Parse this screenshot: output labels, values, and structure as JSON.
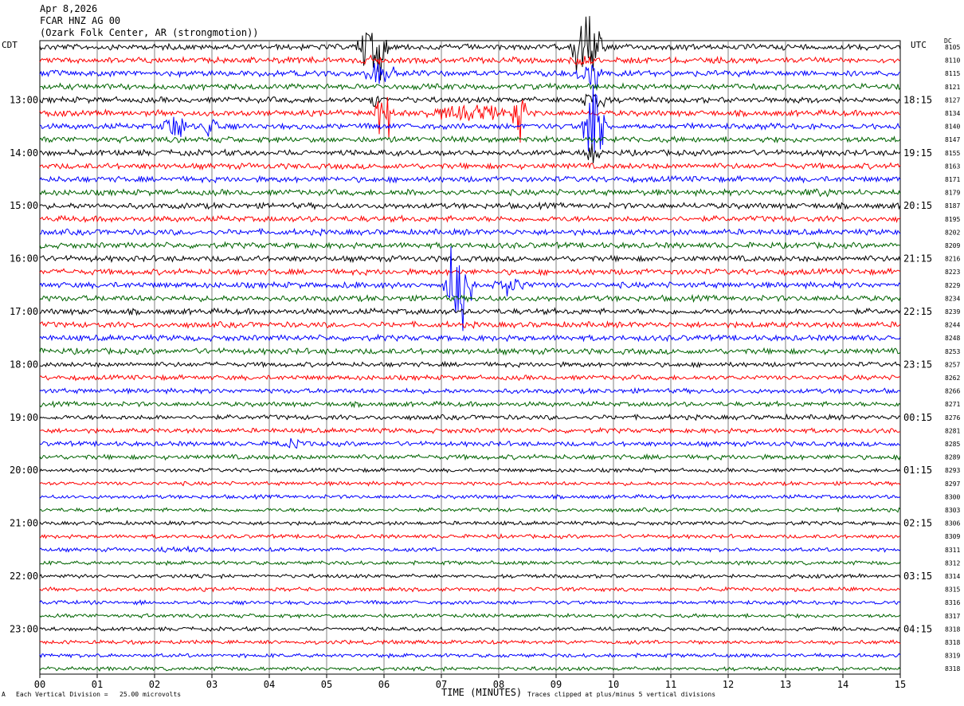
{
  "header": {
    "date": "Apr 8,2026",
    "station": "FCAR HNZ AG 00",
    "location": "(Ozark Folk Center, AR (strongmotion))"
  },
  "left_tz": "CDT",
  "right_tz": "UTC",
  "dc_label": "DC",
  "footer": {
    "scale": "Each Vertical Division =   25.00 microvolts",
    "xlabel": "TIME (MINUTES)",
    "clip_note": "Traces clipped at plus/minus 5 vertical divisions",
    "corner_mark": "A"
  },
  "colors": {
    "cycle": [
      "#000000",
      "#ff0000",
      "#0000ff",
      "#006400"
    ],
    "grid": "#808080"
  },
  "chart_data": {
    "type": "line",
    "plot_kind": "helicorder",
    "xlabel": "TIME (MINUTES)",
    "x_range": [
      0,
      15
    ],
    "x_ticks": [
      "00",
      "01",
      "02",
      "03",
      "04",
      "05",
      "06",
      "07",
      "08",
      "09",
      "10",
      "11",
      "12",
      "13",
      "14",
      "15"
    ],
    "trace_count": 48,
    "minutes_per_trace": 15,
    "left_hour_labels": [
      {
        "trace": 4,
        "label": "13:00"
      },
      {
        "trace": 8,
        "label": "14:00"
      },
      {
        "trace": 12,
        "label": "15:00"
      },
      {
        "trace": 16,
        "label": "16:00"
      },
      {
        "trace": 20,
        "label": "17:00"
      },
      {
        "trace": 24,
        "label": "18:00"
      },
      {
        "trace": 28,
        "label": "19:00"
      },
      {
        "trace": 32,
        "label": "20:00"
      },
      {
        "trace": 36,
        "label": "21:00"
      },
      {
        "trace": 40,
        "label": "22:00"
      },
      {
        "trace": 44,
        "label": "23:00"
      }
    ],
    "right_hour_labels": [
      {
        "trace": 4,
        "label": "18:15"
      },
      {
        "trace": 8,
        "label": "19:15"
      },
      {
        "trace": 12,
        "label": "20:15"
      },
      {
        "trace": 16,
        "label": "21:15"
      },
      {
        "trace": 20,
        "label": "22:15"
      },
      {
        "trace": 24,
        "label": "23:15"
      },
      {
        "trace": 28,
        "label": "00:15"
      },
      {
        "trace": 32,
        "label": "01:15"
      },
      {
        "trace": 36,
        "label": "02:15"
      },
      {
        "trace": 40,
        "label": "03:15"
      },
      {
        "trace": 44,
        "label": "04:15"
      }
    ],
    "dc_offsets": [
      "8105",
      "8110",
      "8115",
      "8121",
      "8127",
      "8134",
      "8140",
      "8147",
      "8155",
      "8163",
      "8171",
      "8179",
      "8187",
      "8195",
      "8202",
      "8209",
      "8216",
      "8223",
      "8229",
      "8234",
      "8239",
      "8244",
      "8248",
      "8253",
      "8257",
      "8262",
      "8266",
      "8271",
      "8276",
      "8281",
      "8285",
      "8289",
      "8293",
      "8297",
      "8300",
      "8303",
      "8306",
      "8309",
      "8311",
      "8312",
      "8314",
      "8315",
      "8316",
      "8317",
      "8318",
      "8318",
      "8319",
      "8318"
    ],
    "noise_levels": [
      3,
      3,
      3,
      3,
      3,
      3,
      3,
      3,
      3,
      3,
      3,
      3,
      3,
      3,
      3,
      3,
      3,
      3,
      3,
      3,
      3,
      3,
      3,
      3,
      2.5,
      2.5,
      2.5,
      2.5,
      2.5,
      2.5,
      2.5,
      2.5,
      2,
      2,
      2,
      2,
      2,
      2,
      2,
      2,
      2,
      2,
      2,
      2,
      2,
      2,
      2,
      2
    ],
    "events": [
      {
        "trace": 0,
        "start_min": 5.5,
        "end_min": 6.1,
        "amp": 60
      },
      {
        "trace": 0,
        "start_min": 9.2,
        "end_min": 9.9,
        "amp": 55
      },
      {
        "trace": 1,
        "start_min": 5.5,
        "end_min": 6.1,
        "amp": 8
      },
      {
        "trace": 1,
        "start_min": 9.1,
        "end_min": 9.9,
        "amp": 8
      },
      {
        "trace": 2,
        "start_min": 5.6,
        "end_min": 6.3,
        "amp": 20
      },
      {
        "trace": 2,
        "start_min": 9.3,
        "end_min": 9.9,
        "amp": 25
      },
      {
        "trace": 4,
        "start_min": 5.7,
        "end_min": 6.0,
        "amp": 20
      },
      {
        "trace": 4,
        "start_min": 9.4,
        "end_min": 9.9,
        "amp": 25
      },
      {
        "trace": 5,
        "start_min": 5.8,
        "end_min": 6.2,
        "amp": 50
      },
      {
        "trace": 5,
        "start_min": 6.3,
        "end_min": 8.7,
        "amp": 12
      },
      {
        "trace": 5,
        "start_min": 8.2,
        "end_min": 8.5,
        "amp": 45
      },
      {
        "trace": 6,
        "start_min": 2.1,
        "end_min": 2.6,
        "amp": 22
      },
      {
        "trace": 6,
        "start_min": 2.8,
        "end_min": 3.2,
        "amp": 18
      },
      {
        "trace": 6,
        "start_min": 9.4,
        "end_min": 9.9,
        "amp": 75
      },
      {
        "trace": 8,
        "start_min": 9.5,
        "end_min": 9.8,
        "amp": 25
      },
      {
        "trace": 11,
        "start_min": 12.8,
        "end_min": 14.3,
        "amp": 6
      },
      {
        "trace": 11,
        "start_min": 6.2,
        "end_min": 7.2,
        "amp": 5
      },
      {
        "trace": 18,
        "start_min": 7.0,
        "end_min": 7.6,
        "amp": 70
      },
      {
        "trace": 18,
        "start_min": 7.8,
        "end_min": 8.6,
        "amp": 15
      },
      {
        "trace": 18,
        "start_min": 5.0,
        "end_min": 6.0,
        "amp": 5
      },
      {
        "trace": 30,
        "start_min": 4.1,
        "end_min": 4.8,
        "amp": 8
      },
      {
        "trace": 38,
        "start_min": 1.5,
        "end_min": 3.5,
        "amp": 4
      }
    ]
  }
}
